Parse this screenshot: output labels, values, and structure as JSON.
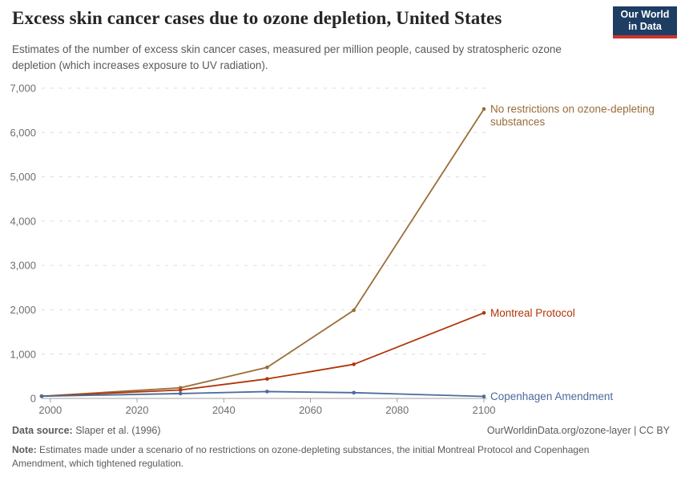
{
  "header": {
    "title": "Excess skin cancer cases due to ozone depletion, United States",
    "subtitle": "Estimates of the number of excess skin cancer cases, measured per million people, caused by stratospheric ozone depletion (which increases exposure to UV radiation).",
    "logo": {
      "line1": "Our World",
      "line2": "in Data",
      "bg_color": "#1d3d63",
      "bar_color": "#d0342c"
    }
  },
  "chart_data": {
    "type": "line",
    "title": "Excess skin cancer cases due to ozone depletion, United States",
    "xlabel": "",
    "ylabel": "",
    "x": [
      1998,
      2030,
      2050,
      2070,
      2100
    ],
    "series": [
      {
        "name": "No restrictions on ozone-depleting substances",
        "label_lines": [
          "No restrictions on ozone-depleting",
          "substances"
        ],
        "color": "#996D39",
        "values": [
          50,
          240,
          700,
          1990,
          6530
        ]
      },
      {
        "name": "Montreal Protocol",
        "label_lines": [
          "Montreal Protocol"
        ],
        "color": "#B13507",
        "values": [
          50,
          190,
          440,
          770,
          1930
        ]
      },
      {
        "name": "Copenhagen Amendment",
        "label_lines": [
          "Copenhagen Amendment"
        ],
        "color": "#4C6A9C",
        "values": [
          50,
          110,
          155,
          130,
          45
        ]
      }
    ],
    "xlim": [
      1998,
      2100
    ],
    "ylim": [
      0,
      7000
    ],
    "xticks": [
      2000,
      2020,
      2040,
      2060,
      2080,
      2100
    ],
    "yticks": [
      0,
      1000,
      2000,
      3000,
      4000,
      5000,
      6000,
      7000
    ],
    "grid": true,
    "grid_color": "#dcdcdc",
    "axis_color": "#a1a1a1",
    "tick_label_color": "#6e6e6e",
    "legend_position": "right-of-line-ends"
  },
  "footer": {
    "source_label": "Data source:",
    "source_value": " Slaper et al. (1996)",
    "link": "OurWorldinData.org/ozone-layer | CC BY",
    "note_label": "Note:",
    "note_value": " Estimates made under a scenario of no restrictions on ozone-depleting substances, the initial Montreal Protocol and Copenhagen Amendment, which tightened regulation."
  }
}
